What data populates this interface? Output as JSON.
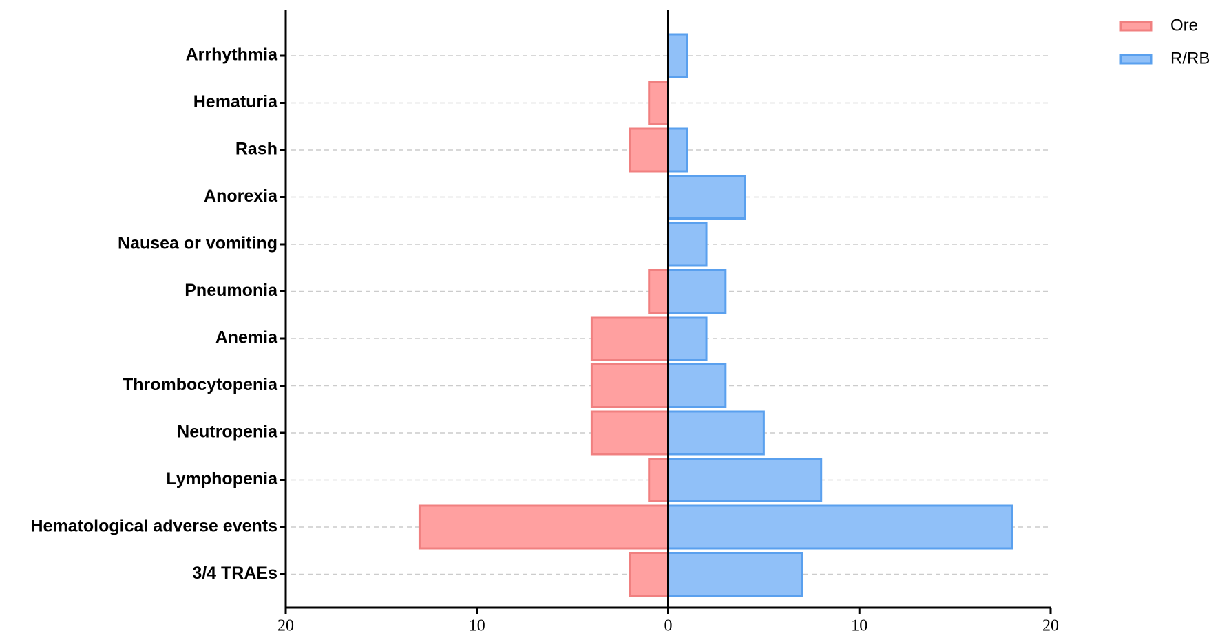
{
  "chart_data": {
    "type": "butterfly-bar",
    "categories": [
      "Arrhythmia",
      "Hematuria",
      "Rash",
      "Anorexia",
      "Nausea or vomiting",
      "Pneumonia",
      "Anemia",
      "Thrombocytopenia",
      "Neutropenia",
      "Lymphopenia",
      "Hematological adverse events",
      "3/4 TRAEs"
    ],
    "series": [
      {
        "name": "Ore",
        "color": "#ffa0a0",
        "stroke": "#f08080",
        "direction": "left",
        "values": [
          0,
          1,
          2,
          0,
          0,
          1,
          4,
          4,
          4,
          1,
          13,
          2
        ]
      },
      {
        "name": "R/RB",
        "color": "#90c0f8",
        "stroke": "#5aa0ee",
        "direction": "right",
        "values": [
          1,
          0,
          1,
          4,
          2,
          3,
          2,
          3,
          5,
          8,
          18,
          7
        ]
      }
    ],
    "xlim": [
      -20,
      20
    ],
    "xticks": [
      {
        "value": -20,
        "label": "20"
      },
      {
        "value": -10,
        "label": "10"
      },
      0,
      10,
      {
        "value": 20,
        "label": "20"
      }
    ],
    "grid": true,
    "legend": "top-right"
  }
}
